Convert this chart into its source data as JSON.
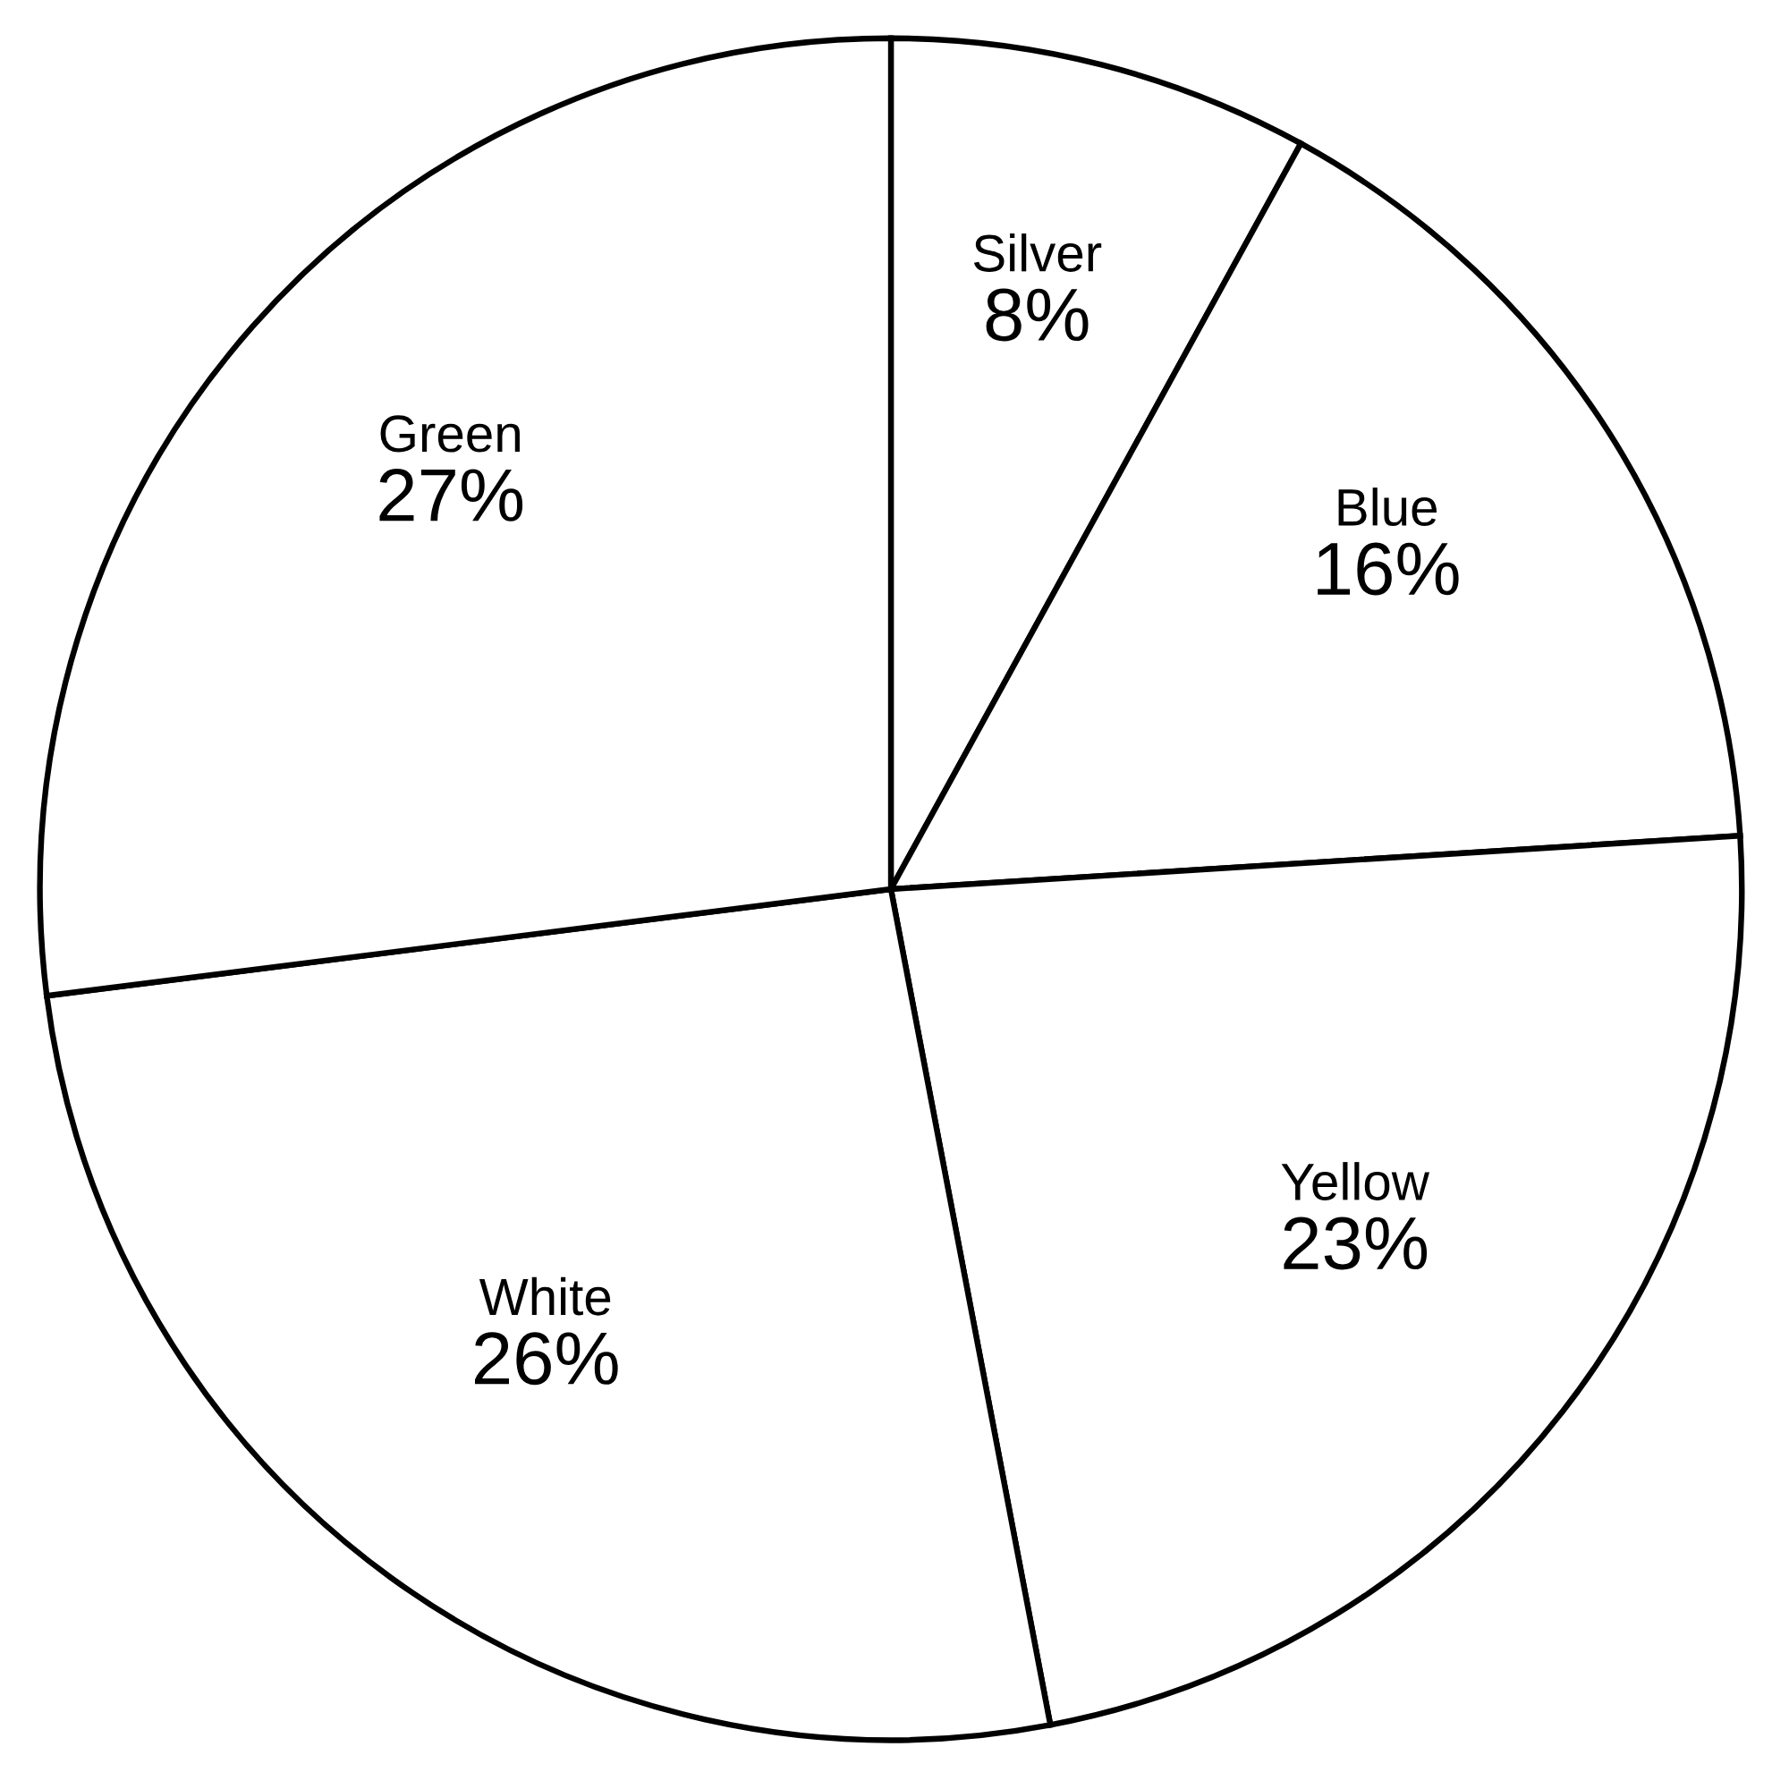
{
  "chart_data": {
    "type": "pie",
    "categories": [
      "Silver",
      "Blue",
      "Yellow",
      "White",
      "Green"
    ],
    "values": [
      8,
      16,
      23,
      26,
      27
    ],
    "value_labels": [
      "8%",
      "16%",
      "23%",
      "26%",
      "27%"
    ],
    "colors": [
      "#ffffff",
      "#ffffff",
      "#ffffff",
      "#ffffff",
      "#ffffff"
    ],
    "legend": false
  }
}
